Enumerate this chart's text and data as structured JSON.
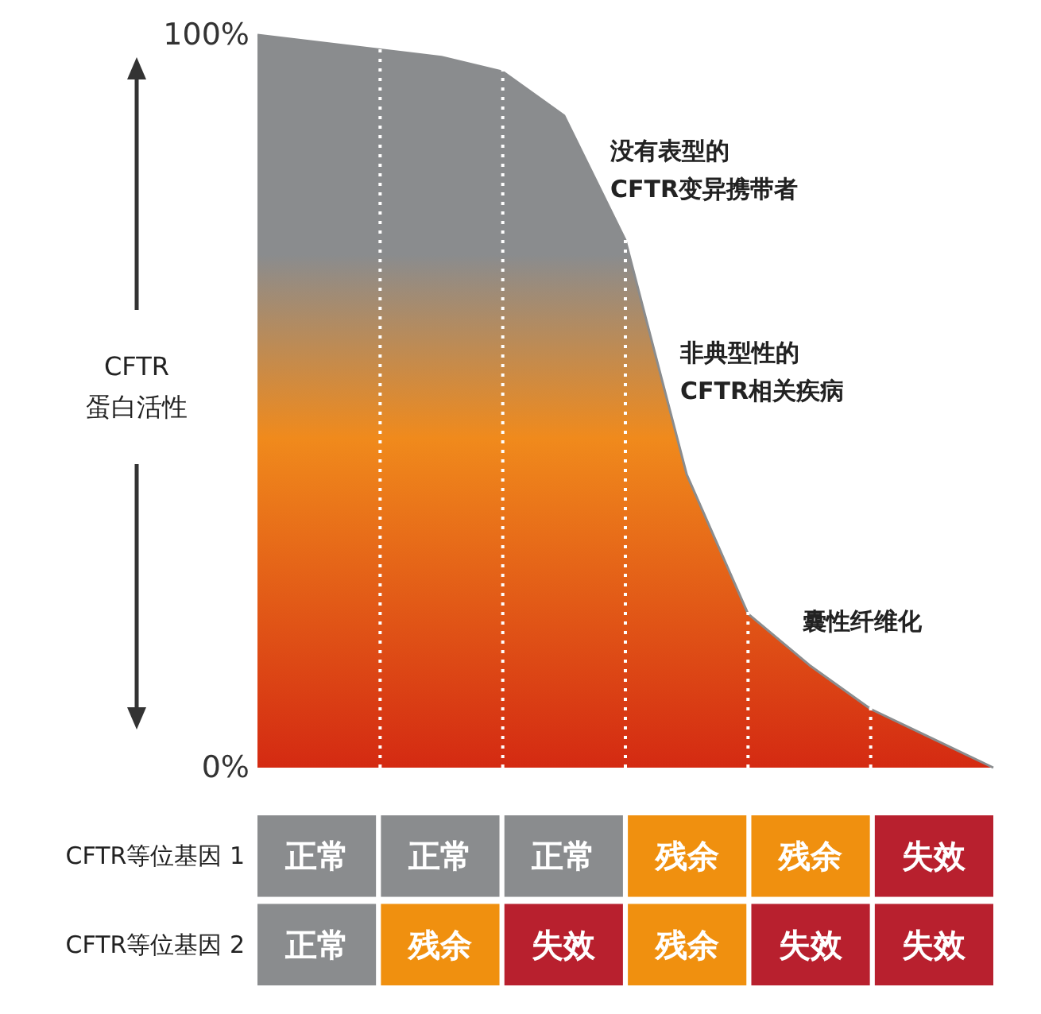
{
  "chart_data": [
    {
      "type": "area",
      "ylabel": "CFTR\n蛋白活性",
      "categories": [
        null,
        null,
        null,
        null,
        null,
        null,
        null,
        null,
        null,
        null,
        null,
        null,
        null
      ],
      "series": [
        {
          "color": "#8a8c8e",
          "values": [
            100,
            99,
            98,
            97,
            95,
            89,
            72,
            40,
            21,
            14,
            8,
            4,
            0
          ]
        }
      ],
      "ylim": [
        0,
        100
      ],
      "grid": "x",
      "yticks": [
        {
          "value": 0,
          "label": "0%"
        },
        {
          "value": 100,
          "label": "100%"
        }
      ],
      "annotations": [
        "没有表型的\nCFTR变异携带者",
        "非典型性的\nCFTR相关疾病",
        "囊性纤维化"
      ]
    },
    {
      "type": "heatmap",
      "categories": [
        null,
        null,
        null,
        null,
        null,
        null
      ],
      "y_categories": [
        "CFTR等位基因 1",
        "CFTR等位基因 2"
      ],
      "cells": [
        [
          null,
          null,
          null,
          null,
          null,
          null
        ],
        [
          null,
          null,
          null,
          null,
          null,
          null
        ]
      ],
      "cell_labels": [
        [
          "正常",
          "正常",
          "正常",
          "残余",
          "残余",
          "失效"
        ],
        [
          "正常",
          "残余",
          "失效",
          "残余",
          "失效",
          "失效"
        ]
      ],
      "colors": [
        [
          "#8a8c8e",
          "#8a8c8e",
          "#8a8c8e",
          "#f0900f",
          "#f0900f",
          "#b8202e"
        ],
        [
          "#8a8c8e",
          "#f0900f",
          "#b8202e",
          "#f0900f",
          "#b8202e",
          "#b8202e"
        ]
      ]
    }
  ]
}
